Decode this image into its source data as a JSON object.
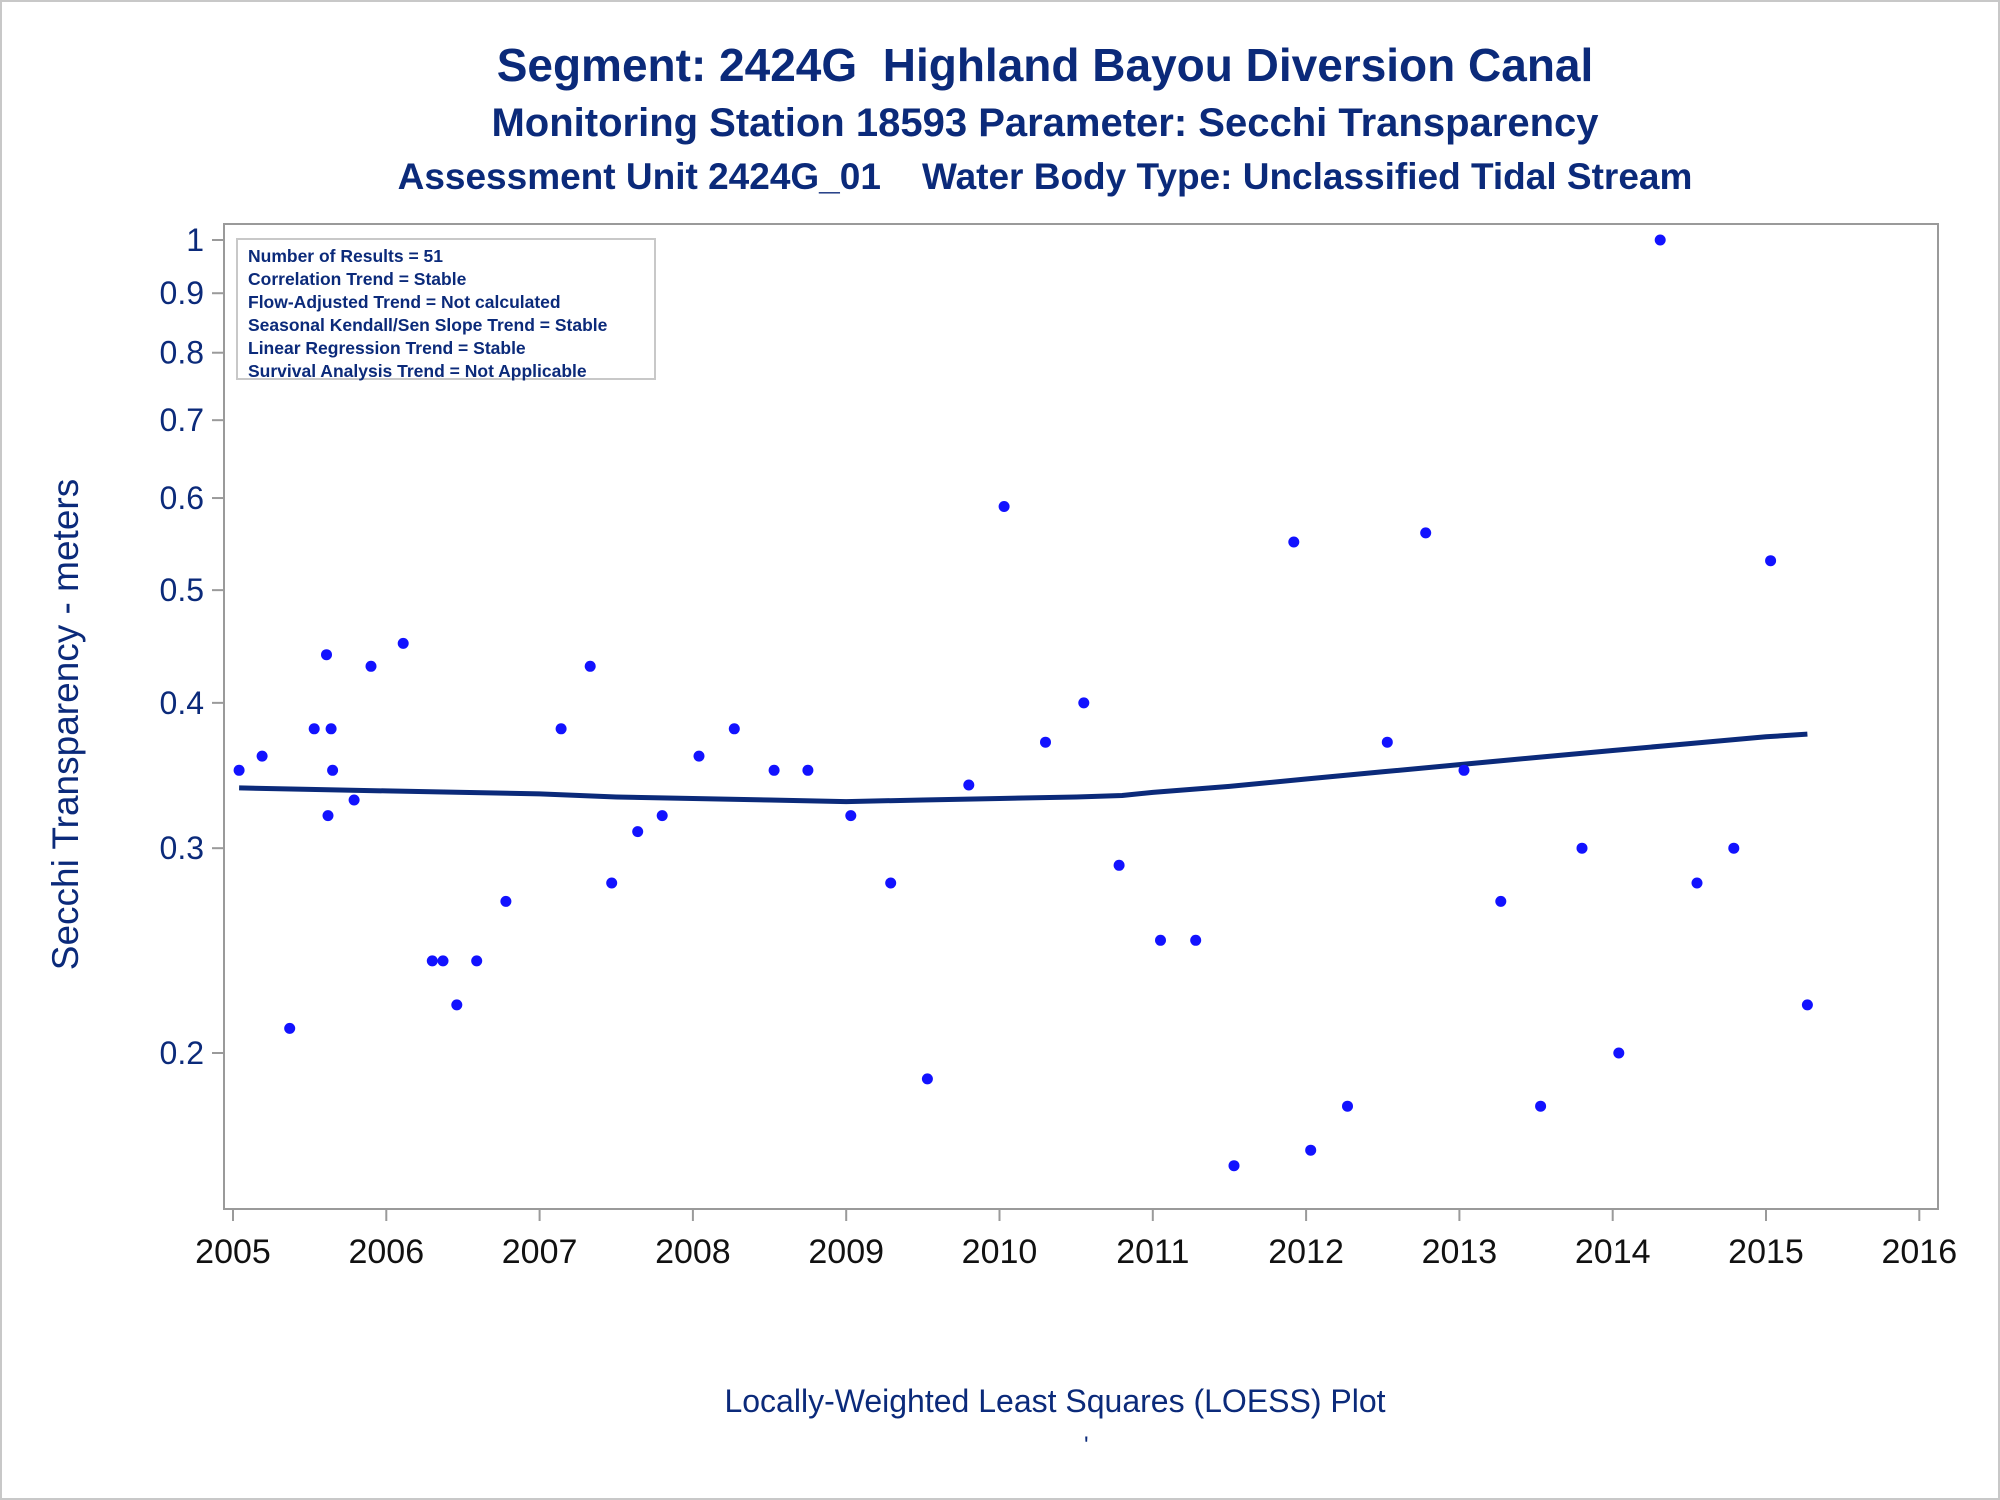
{
  "titles": {
    "line1": "Segment: 2424G  Highland Bayou Diversion Canal",
    "line2": "Monitoring Station 18593 Parameter: Secchi Transparency",
    "line3": "Assessment Unit 2424G_01    Water Body Type: Unclassified Tidal Stream"
  },
  "stats_box": [
    "Number of Results = 51",
    "Correlation Trend = Stable",
    "Flow-Adjusted Trend = Not calculated",
    "Seasonal Kendall/Sen Slope Trend = Stable",
    "Linear Regression Trend = Stable",
    "Survival Analysis Trend = Not Applicable"
  ],
  "footnote": "Locally-Weighted Least Squares (LOESS) Plot",
  "footnote_mark": "'",
  "colors": {
    "text": "#0b2a7a",
    "points": "#1212ff",
    "loess": "#0b2a7a",
    "axis": "#9a9a9a"
  },
  "chart_data": {
    "type": "scatter",
    "ylabel": "Secchi Transparency - meters",
    "xlabel": "",
    "y_scale": "log",
    "xlim": [
      2005,
      2016
    ],
    "ylim": [
      0.16,
      1.02
    ],
    "x_ticks": [
      {
        "v": 2005,
        "label": "2005"
      },
      {
        "v": 2006,
        "label": "2006"
      },
      {
        "v": 2007,
        "label": "2007"
      },
      {
        "v": 2008,
        "label": "2008"
      },
      {
        "v": 2009,
        "label": "2009"
      },
      {
        "v": 2010,
        "label": "2010"
      },
      {
        "v": 2011,
        "label": "2011"
      },
      {
        "v": 2012,
        "label": "2012"
      },
      {
        "v": 2013,
        "label": "2013"
      },
      {
        "v": 2014,
        "label": "2014"
      },
      {
        "v": 2015,
        "label": "2015"
      },
      {
        "v": 2016,
        "label": "2016"
      }
    ],
    "y_ticks": [
      {
        "v": 0.2,
        "label": "0.2"
      },
      {
        "v": 0.3,
        "label": "0.3"
      },
      {
        "v": 0.4,
        "label": "0.4"
      },
      {
        "v": 0.5,
        "label": "0.5"
      },
      {
        "v": 0.6,
        "label": "0.6"
      },
      {
        "v": 0.7,
        "label": "0.7"
      },
      {
        "v": 0.8,
        "label": "0.8"
      },
      {
        "v": 0.9,
        "label": "0.9"
      },
      {
        "v": 1.0,
        "label": "1"
      }
    ],
    "grid": false,
    "series": [
      {
        "kind": "points",
        "points": [
          [
            2005.04,
            0.35
          ],
          [
            2005.19,
            0.36
          ],
          [
            2005.37,
            0.21
          ],
          [
            2005.53,
            0.38
          ],
          [
            2005.61,
            0.44
          ],
          [
            2005.62,
            0.32
          ],
          [
            2005.64,
            0.38
          ],
          [
            2005.65,
            0.35
          ],
          [
            2005.79,
            0.33
          ],
          [
            2005.9,
            0.43
          ],
          [
            2006.11,
            0.45
          ],
          [
            2006.3,
            0.24
          ],
          [
            2006.37,
            0.24
          ],
          [
            2006.46,
            0.22
          ],
          [
            2006.59,
            0.24
          ],
          [
            2006.78,
            0.27
          ],
          [
            2007.14,
            0.38
          ],
          [
            2007.33,
            0.43
          ],
          [
            2007.47,
            0.28
          ],
          [
            2007.64,
            0.31
          ],
          [
            2007.8,
            0.32
          ],
          [
            2008.04,
            0.36
          ],
          [
            2008.27,
            0.38
          ],
          [
            2008.53,
            0.35
          ],
          [
            2008.75,
            0.35
          ],
          [
            2009.03,
            0.32
          ],
          [
            2009.29,
            0.28
          ],
          [
            2009.53,
            0.19
          ],
          [
            2009.8,
            0.34
          ],
          [
            2010.03,
            0.59
          ],
          [
            2010.3,
            0.37
          ],
          [
            2010.55,
            0.4
          ],
          [
            2010.78,
            0.29
          ],
          [
            2011.05,
            0.25
          ],
          [
            2011.28,
            0.25
          ],
          [
            2011.53,
            0.16
          ],
          [
            2011.92,
            0.55
          ],
          [
            2012.03,
            0.165
          ],
          [
            2012.27,
            0.18
          ],
          [
            2012.53,
            0.37
          ],
          [
            2012.78,
            0.56
          ],
          [
            2013.03,
            0.35
          ],
          [
            2013.27,
            0.27
          ],
          [
            2013.53,
            0.18
          ],
          [
            2013.8,
            0.3
          ],
          [
            2014.04,
            0.2
          ],
          [
            2014.31,
            1.0
          ],
          [
            2014.55,
            0.28
          ],
          [
            2014.79,
            0.3
          ],
          [
            2015.03,
            0.53
          ],
          [
            2015.27,
            0.22
          ]
        ]
      },
      {
        "kind": "loess",
        "points": [
          [
            2005.04,
            0.338
          ],
          [
            2005.5,
            0.337
          ],
          [
            2006.0,
            0.336
          ],
          [
            2006.5,
            0.335
          ],
          [
            2007.0,
            0.334
          ],
          [
            2007.5,
            0.332
          ],
          [
            2008.0,
            0.331
          ],
          [
            2008.5,
            0.33
          ],
          [
            2009.0,
            0.329
          ],
          [
            2009.5,
            0.33
          ],
          [
            2010.0,
            0.331
          ],
          [
            2010.5,
            0.332
          ],
          [
            2010.8,
            0.333
          ],
          [
            2011.0,
            0.335
          ],
          [
            2011.5,
            0.339
          ],
          [
            2012.0,
            0.344
          ],
          [
            2012.5,
            0.349
          ],
          [
            2013.0,
            0.354
          ],
          [
            2013.5,
            0.359
          ],
          [
            2014.0,
            0.364
          ],
          [
            2014.5,
            0.369
          ],
          [
            2015.0,
            0.374
          ],
          [
            2015.27,
            0.376
          ]
        ]
      }
    ]
  }
}
